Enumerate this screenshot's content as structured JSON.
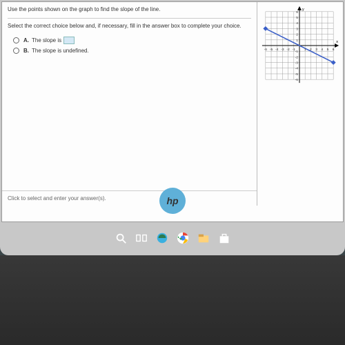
{
  "question": {
    "title": "Use the points shown on the graph to find the slope of the line.",
    "subtitle": "Select the correct choice below and, if necessary, fill in the answer box to complete your choice.",
    "choices": [
      {
        "letter": "A.",
        "text": "The slope is",
        "has_blank": true
      },
      {
        "letter": "B.",
        "text": "The slope is undefined.",
        "has_blank": false
      }
    ],
    "footer": "Click to select and enter your answer(s)."
  },
  "graph": {
    "axis_labels": {
      "x": "x",
      "y": "y"
    },
    "xlim": [
      -6,
      6
    ],
    "ylim": [
      -6,
      6
    ],
    "tick_step": 1,
    "grid_color": "#888",
    "axis_color": "#000",
    "line_color": "#3a5fc8",
    "line_width": 1.6,
    "points": [
      {
        "x": -6,
        "y": 3,
        "marker": "diamond",
        "color": "#3a5fc8"
      },
      {
        "x": 6,
        "y": -3,
        "marker": "diamond",
        "color": "#3a5fc8"
      }
    ],
    "tick_labels_y": [
      6,
      5,
      4,
      3,
      2,
      1,
      -1,
      -2,
      -3,
      -4,
      -5,
      -6
    ],
    "tick_labels_x": [
      -6,
      -5,
      -4,
      -3,
      -2,
      -1,
      1,
      2,
      3,
      4,
      5,
      6
    ]
  },
  "taskbar": {
    "icons": [
      {
        "name": "search",
        "color": "#ffffff"
      },
      {
        "name": "task-view",
        "color": "#ffffff"
      },
      {
        "name": "edge",
        "color": "#3ab0e0"
      },
      {
        "name": "chrome",
        "bg": "#ffffff"
      },
      {
        "name": "explorer",
        "color": "#ffd27a"
      },
      {
        "name": "store",
        "color": "#ffffff"
      }
    ]
  },
  "hp": "hp",
  "colors": {
    "screen_bg": "#c8c8c8",
    "window_bg": "#fdfdfd",
    "bezel": "#2a2a2a"
  }
}
